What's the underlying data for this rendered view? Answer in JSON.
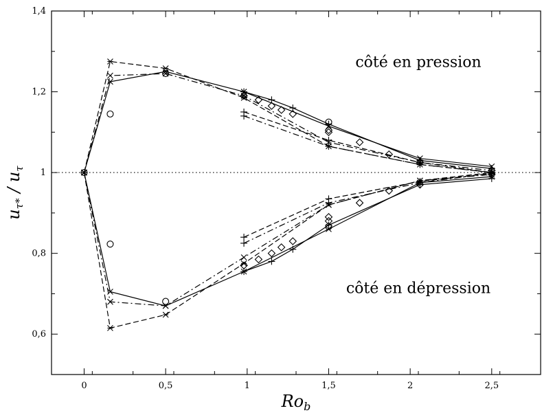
{
  "chart_data": {
    "type": "line",
    "title": "",
    "xlabel": "Ro_b",
    "ylabel": "u_τ* / u_τ",
    "xlim": [
      -0.2,
      2.8
    ],
    "ylim": [
      0.5,
      1.4
    ],
    "x_ticks": [
      0,
      0.5,
      1,
      1.5,
      2,
      2.5
    ],
    "x_tick_labels": [
      "0",
      "0,5",
      "1",
      "1,5",
      "2",
      "2,5"
    ],
    "y_ticks": [
      0.6,
      0.8,
      1.0,
      1.2,
      1.4
    ],
    "y_tick_labels": [
      "0,6",
      "0,8",
      "1",
      "1,2",
      "1,4"
    ],
    "reference_line": {
      "y": 1.0,
      "style": "dotted"
    },
    "annotations": [
      {
        "text": "côté en pression",
        "x": 2.05,
        "y": 1.275
      },
      {
        "text": "côté en dépression",
        "x": 2.05,
        "y": 0.715
      }
    ],
    "series": [
      {
        "style": "solid",
        "marker": "x",
        "side": "pressure",
        "x": [
          0,
          0.16,
          0.5,
          0.98,
          1.5,
          2.06,
          2.5
        ],
        "y": [
          1.0,
          1.225,
          1.25,
          1.2,
          1.115,
          1.035,
          1.015
        ]
      },
      {
        "style": "dashdot",
        "marker": "x",
        "side": "pressure",
        "x": [
          0,
          0.16,
          0.5,
          0.98,
          1.5,
          2.06,
          2.5
        ],
        "y": [
          1.0,
          1.24,
          1.245,
          1.19,
          1.075,
          1.025,
          1.005
        ]
      },
      {
        "style": "dashed",
        "marker": "star",
        "side": "pressure",
        "x": [
          0,
          0.16,
          0.5,
          0.98,
          1.5,
          2.06,
          2.5
        ],
        "y": [
          1.0,
          1.275,
          1.258,
          1.185,
          1.065,
          1.02,
          1.0
        ]
      },
      {
        "style": "solid",
        "marker": "plus",
        "side": "pressure",
        "x": [
          0.98,
          1.15,
          1.28,
          1.5,
          2.06,
          2.5
        ],
        "y": [
          1.2,
          1.18,
          1.16,
          1.12,
          1.03,
          1.01
        ]
      },
      {
        "style": "dashed",
        "marker": "plus",
        "side": "pressure",
        "x": [
          0.98,
          1.5,
          2.06,
          2.5
        ],
        "y": [
          1.15,
          1.08,
          1.025,
          1.0
        ]
      },
      {
        "style": "dashdot",
        "marker": "plus",
        "side": "pressure",
        "x": [
          0.98,
          1.5,
          2.06,
          2.5
        ],
        "y": [
          1.14,
          1.065,
          1.02,
          1.0
        ]
      },
      {
        "style": "none",
        "marker": "circle",
        "side": "pressure",
        "x": [
          0.16,
          0.5,
          1.5
        ],
        "y": [
          1.145,
          1.245,
          1.125
        ]
      },
      {
        "style": "none",
        "marker": "diamond",
        "side": "pressure",
        "x": [
          0.98,
          1.07,
          1.15,
          1.21,
          1.28,
          1.5,
          1.5,
          1.69,
          1.87,
          2.06,
          2.5
        ],
        "y": [
          1.19,
          1.18,
          1.165,
          1.155,
          1.145,
          1.105,
          1.1,
          1.075,
          1.045,
          1.025,
          1.005
        ]
      },
      {
        "style": "solid",
        "marker": "x",
        "side": "suction",
        "x": [
          0,
          0.16,
          0.5,
          0.98,
          1.5,
          2.06,
          2.5
        ],
        "y": [
          1.0,
          0.705,
          0.67,
          0.755,
          0.86,
          0.975,
          0.99
        ]
      },
      {
        "style": "dashdot",
        "marker": "x",
        "side": "suction",
        "x": [
          0,
          0.16,
          0.5,
          0.98,
          1.5,
          2.06,
          2.5
        ],
        "y": [
          1.0,
          0.68,
          0.67,
          0.79,
          0.92,
          0.98,
          0.995
        ]
      },
      {
        "style": "dashed",
        "marker": "star",
        "side": "suction",
        "x": [
          0,
          0.16,
          0.5,
          0.98,
          1.5,
          2.06,
          2.5
        ],
        "y": [
          1.0,
          0.615,
          0.648,
          0.775,
          0.92,
          0.98,
          1.0
        ]
      },
      {
        "style": "solid",
        "marker": "plus",
        "side": "suction",
        "x": [
          0.98,
          1.15,
          1.28,
          1.5,
          2.06,
          2.5
        ],
        "y": [
          0.755,
          0.78,
          0.81,
          0.87,
          0.97,
          0.985
        ]
      },
      {
        "style": "dashed",
        "marker": "plus",
        "side": "suction",
        "x": [
          0.98,
          1.5,
          2.06,
          2.5
        ],
        "y": [
          0.84,
          0.935,
          0.978,
          0.998
        ]
      },
      {
        "style": "dashdot",
        "marker": "plus",
        "side": "suction",
        "x": [
          0.98,
          1.5,
          2.06,
          2.5
        ],
        "y": [
          0.825,
          0.925,
          0.975,
          0.998
        ]
      },
      {
        "style": "none",
        "marker": "circle",
        "side": "suction",
        "x": [
          0.16,
          0.5,
          1.5
        ],
        "y": [
          0.823,
          0.681,
          0.866
        ]
      },
      {
        "style": "none",
        "marker": "diamond",
        "side": "suction",
        "x": [
          0.98,
          1.07,
          1.15,
          1.21,
          1.28,
          1.5,
          1.5,
          1.69,
          1.87,
          2.06,
          2.5
        ],
        "y": [
          0.77,
          0.785,
          0.8,
          0.815,
          0.83,
          0.88,
          0.89,
          0.925,
          0.955,
          0.97,
          0.995
        ]
      }
    ]
  }
}
